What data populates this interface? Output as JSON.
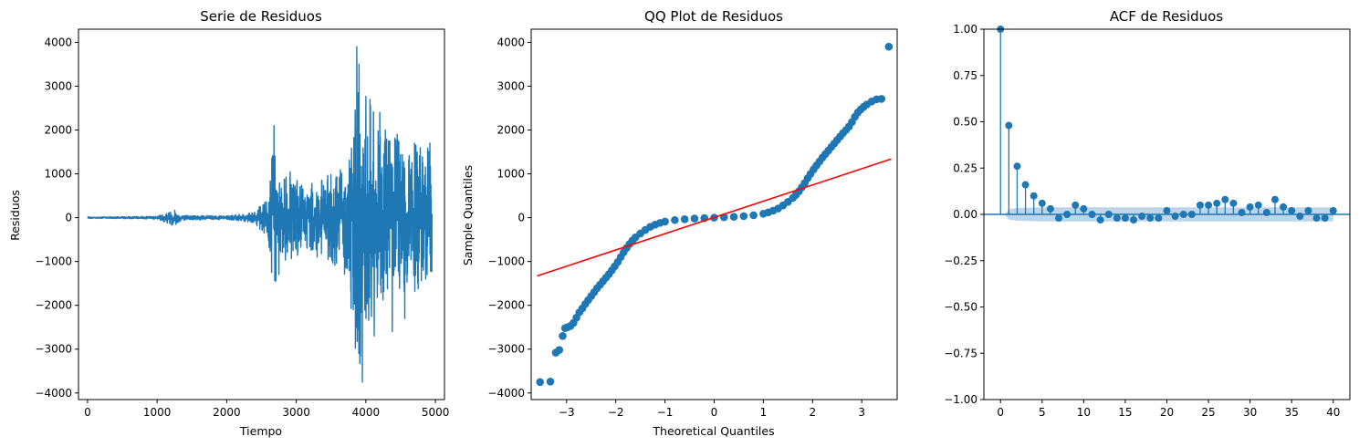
{
  "colors": {
    "series": "#1f77b4",
    "fit_line": "#ff0000",
    "confint": "#b7cfe6"
  },
  "chart_data": [
    {
      "type": "line",
      "title": "Serie de Residuos",
      "xlabel": "Tiempo",
      "ylabel": "Residuos",
      "xlim": [
        -130,
        5130
      ],
      "ylim": [
        -4150,
        4300
      ],
      "xticks": [
        0,
        1000,
        2000,
        3000,
        4000,
        5000
      ],
      "xtick_labels": [
        "0",
        "1000",
        "2000",
        "3000",
        "4000",
        "5000"
      ],
      "yticks": [
        -4000,
        -3000,
        -2000,
        -1000,
        0,
        1000,
        2000,
        3000,
        4000
      ],
      "ytick_labels": [
        "−4000",
        "−3000",
        "−2000",
        "−1000",
        "0",
        "1000",
        "2000",
        "3000",
        "4000"
      ],
      "n_points": 4950,
      "envelope": [
        [
          0,
          15
        ],
        [
          1000,
          30
        ],
        [
          1250,
          200
        ],
        [
          1350,
          60
        ],
        [
          2000,
          40
        ],
        [
          2400,
          120
        ],
        [
          2600,
          500
        ],
        [
          2680,
          2100
        ],
        [
          2750,
          800
        ],
        [
          2900,
          1100
        ],
        [
          3100,
          700
        ],
        [
          3400,
          900
        ],
        [
          3700,
          1300
        ],
        [
          3820,
          2500
        ],
        [
          3870,
          3900
        ],
        [
          3950,
          3100
        ],
        [
          4060,
          2700
        ],
        [
          4200,
          1900
        ],
        [
          4450,
          1800
        ],
        [
          4700,
          1700
        ],
        [
          4950,
          1600
        ]
      ],
      "spikes": [
        [
          2680,
          2100
        ],
        [
          2700,
          -1200
        ],
        [
          2750,
          -1300
        ],
        [
          3300,
          -900
        ],
        [
          3860,
          -2500
        ],
        [
          3870,
          3900
        ],
        [
          3900,
          -3100
        ],
        [
          3950,
          -3750
        ],
        [
          4060,
          2700
        ],
        [
          4120,
          -2700
        ],
        [
          4200,
          2400
        ],
        [
          4280,
          2000
        ],
        [
          4380,
          -2600
        ],
        [
          4450,
          1900
        ],
        [
          4560,
          -2300
        ],
        [
          4700,
          1700
        ],
        [
          4880,
          -1300
        ],
        [
          4920,
          1700
        ]
      ]
    },
    {
      "type": "scatter",
      "title": "QQ Plot de Residuos",
      "xlabel": "Theoretical Quantiles",
      "ylabel": "Sample Quantiles",
      "xlim": [
        -3.72,
        3.72
      ],
      "ylim": [
        -4150,
        4300
      ],
      "xticks": [
        -3,
        -2,
        -1,
        0,
        1,
        2,
        3
      ],
      "xtick_labels": [
        "−3",
        "−2",
        "−1",
        "0",
        "1",
        "2",
        "3"
      ],
      "yticks": [
        -4000,
        -3000,
        -2000,
        -1000,
        0,
        1000,
        2000,
        3000,
        4000
      ],
      "ytick_labels": [
        "−4000",
        "−3000",
        "−2000",
        "−1000",
        "0",
        "1000",
        "2000",
        "3000",
        "4000"
      ],
      "points": [
        [
          -3.54,
          -3750
        ],
        [
          -3.33,
          -3740
        ],
        [
          -3.22,
          -3080
        ],
        [
          -3.15,
          -3020
        ],
        [
          -3.08,
          -2700
        ],
        [
          -3.03,
          -2520
        ],
        [
          -2.98,
          -2500
        ],
        [
          -2.92,
          -2470
        ],
        [
          -2.86,
          -2400
        ],
        [
          -2.8,
          -2280
        ],
        [
          -2.74,
          -2160
        ],
        [
          -2.68,
          -2070
        ],
        [
          -2.62,
          -1970
        ],
        [
          -2.56,
          -1880
        ],
        [
          -2.5,
          -1790
        ],
        [
          -2.44,
          -1700
        ],
        [
          -2.38,
          -1610
        ],
        [
          -2.32,
          -1530
        ],
        [
          -2.26,
          -1450
        ],
        [
          -2.2,
          -1370
        ],
        [
          -2.14,
          -1290
        ],
        [
          -2.08,
          -1200
        ],
        [
          -2.02,
          -1110
        ],
        [
          -1.96,
          -1010
        ],
        [
          -1.9,
          -900
        ],
        [
          -1.84,
          -790
        ],
        [
          -1.78,
          -690
        ],
        [
          -1.72,
          -600
        ],
        [
          -1.66,
          -520
        ],
        [
          -1.6,
          -450
        ],
        [
          -1.5,
          -360
        ],
        [
          -1.4,
          -280
        ],
        [
          -1.3,
          -210
        ],
        [
          -1.2,
          -160
        ],
        [
          -1.1,
          -120
        ],
        [
          -1.0,
          -90
        ],
        [
          -0.8,
          -55
        ],
        [
          -0.6,
          -35
        ],
        [
          -0.4,
          -20
        ],
        [
          -0.2,
          -10
        ],
        [
          0.0,
          0
        ],
        [
          0.2,
          10
        ],
        [
          0.4,
          20
        ],
        [
          0.6,
          35
        ],
        [
          0.8,
          55
        ],
        [
          1.0,
          90
        ],
        [
          1.1,
          120
        ],
        [
          1.2,
          160
        ],
        [
          1.3,
          210
        ],
        [
          1.4,
          280
        ],
        [
          1.5,
          360
        ],
        [
          1.6,
          450
        ],
        [
          1.66,
          520
        ],
        [
          1.72,
          600
        ],
        [
          1.78,
          690
        ],
        [
          1.84,
          790
        ],
        [
          1.9,
          900
        ],
        [
          1.96,
          1000
        ],
        [
          2.02,
          1100
        ],
        [
          2.08,
          1190
        ],
        [
          2.14,
          1280
        ],
        [
          2.2,
          1370
        ],
        [
          2.26,
          1450
        ],
        [
          2.32,
          1530
        ],
        [
          2.38,
          1610
        ],
        [
          2.44,
          1690
        ],
        [
          2.5,
          1770
        ],
        [
          2.56,
          1850
        ],
        [
          2.62,
          1930
        ],
        [
          2.68,
          2000
        ],
        [
          2.74,
          2080
        ],
        [
          2.8,
          2180
        ],
        [
          2.86,
          2300
        ],
        [
          2.92,
          2400
        ],
        [
          2.98,
          2470
        ],
        [
          3.04,
          2530
        ],
        [
          3.1,
          2580
        ],
        [
          3.2,
          2650
        ],
        [
          3.3,
          2700
        ],
        [
          3.4,
          2710
        ],
        [
          3.55,
          3900
        ]
      ],
      "fit_line": {
        "x": [
          -3.6,
          3.6
        ],
        "y": [
          -1330,
          1340
        ]
      }
    },
    {
      "type": "stem",
      "title": "ACF de Residuos",
      "xlabel": "",
      "ylabel": "",
      "xlim": [
        -2,
        42
      ],
      "ylim": [
        -1.0,
        1.0
      ],
      "xticks": [
        0,
        5,
        10,
        15,
        20,
        25,
        30,
        35,
        40
      ],
      "xtick_labels": [
        "0",
        "5",
        "10",
        "15",
        "20",
        "25",
        "30",
        "35",
        "40"
      ],
      "yticks": [
        -1.0,
        -0.75,
        -0.5,
        -0.25,
        0.0,
        0.25,
        0.5,
        0.75,
        1.0
      ],
      "ytick_labels": [
        "−1.00",
        "−0.75",
        "−0.50",
        "−0.25",
        "0.00",
        "0.25",
        "0.50",
        "0.75",
        "1.00"
      ],
      "lags": [
        0,
        1,
        2,
        3,
        4,
        5,
        6,
        7,
        8,
        9,
        10,
        11,
        12,
        13,
        14,
        15,
        16,
        17,
        18,
        19,
        20,
        21,
        22,
        23,
        24,
        25,
        26,
        27,
        28,
        29,
        30,
        31,
        32,
        33,
        34,
        35,
        36,
        37,
        38,
        39,
        40
      ],
      "values": [
        1.0,
        0.48,
        0.26,
        0.16,
        0.1,
        0.06,
        0.03,
        -0.02,
        0.0,
        0.05,
        0.03,
        0.0,
        -0.03,
        0.0,
        -0.02,
        -0.02,
        -0.03,
        -0.01,
        -0.02,
        -0.02,
        0.02,
        -0.01,
        0.0,
        0.0,
        0.05,
        0.05,
        0.06,
        0.08,
        0.06,
        0.01,
        0.04,
        0.05,
        0.01,
        0.08,
        0.04,
        0.02,
        -0.01,
        0.02,
        -0.02,
        -0.02,
        0.02
      ],
      "confint_upper": [
        0.0,
        0.028,
        0.034,
        0.036,
        0.037,
        0.038,
        0.038,
        0.038,
        0.038,
        0.038,
        0.038,
        0.038,
        0.038,
        0.038,
        0.038,
        0.038,
        0.038,
        0.038,
        0.038,
        0.038,
        0.038,
        0.038,
        0.038,
        0.038,
        0.038,
        0.038,
        0.038,
        0.038,
        0.038,
        0.038,
        0.038,
        0.038,
        0.038,
        0.038,
        0.038,
        0.038,
        0.038,
        0.038,
        0.038,
        0.038,
        0.038
      ]
    }
  ]
}
